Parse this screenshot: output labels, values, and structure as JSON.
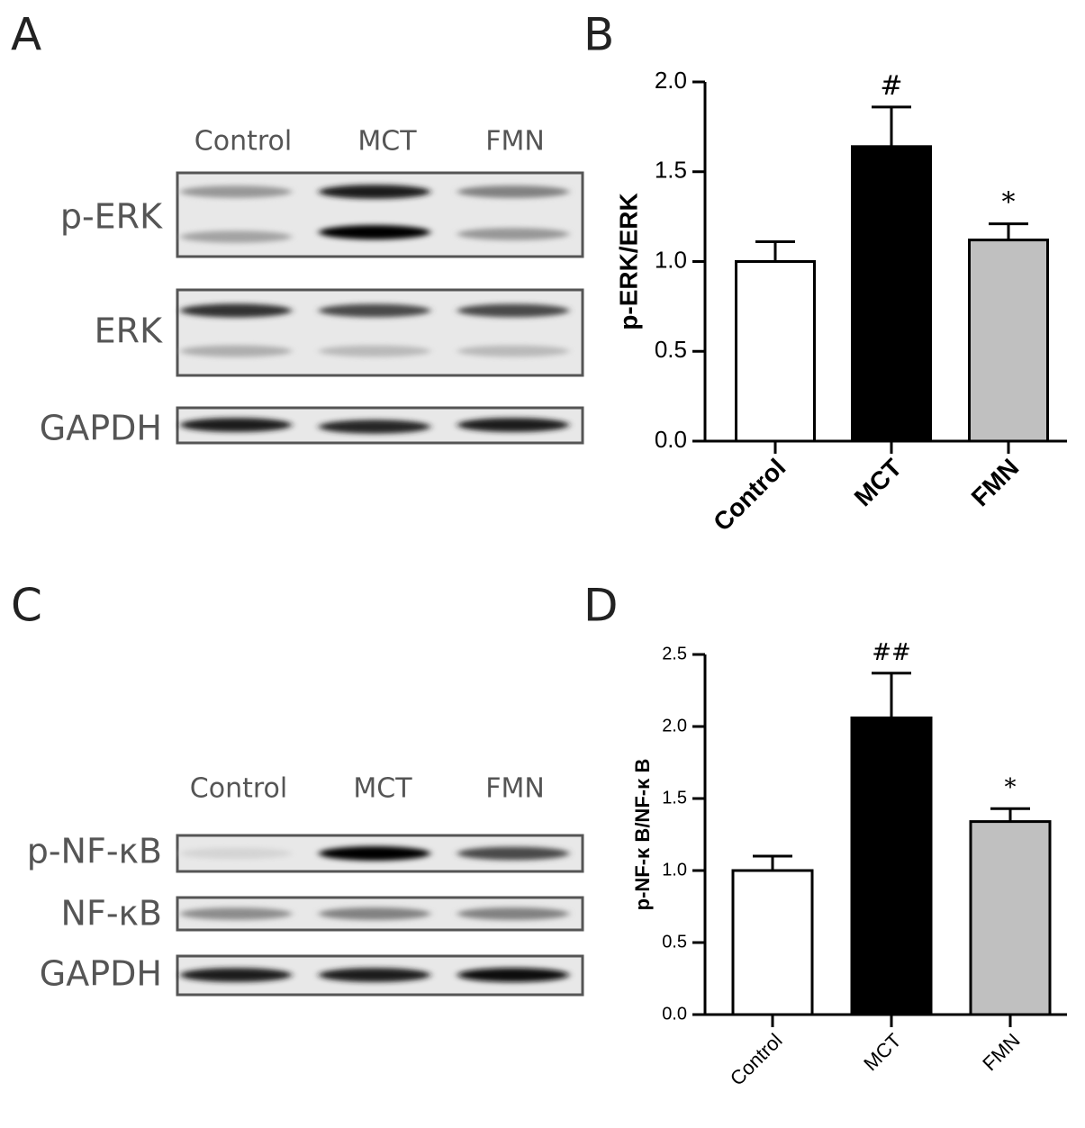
{
  "panel_labels": [
    "A",
    "B",
    "C",
    "D"
  ],
  "blots": [
    {
      "lanes": [
        "Control",
        "MCT",
        "FMN"
      ],
      "rows": [
        "p-ERK",
        "ERK",
        "GAPDH"
      ]
    },
    {
      "lanes": [
        "Control",
        "MCT",
        "FMN"
      ],
      "rows": [
        "p-NF-κB",
        "NF-κB",
        "GAPDH"
      ]
    }
  ],
  "chart_data": [
    {
      "type": "bar",
      "y_label": "p-ERK/ERK",
      "categories": [
        "Control",
        "MCT",
        "FMN"
      ],
      "values": [
        1.0,
        1.64,
        1.12
      ],
      "errors": [
        0.11,
        0.22,
        0.09
      ],
      "annotations": [
        null,
        "#",
        "*"
      ],
      "colors": [
        "#ffffff",
        "#000000",
        "#c0c0c0"
      ],
      "ylim": [
        0,
        2
      ],
      "yticks": [
        {
          "value": 0,
          "label": "0.0"
        },
        {
          "value": 0.5,
          "label": "0.5"
        },
        {
          "value": 1,
          "label": "1.0"
        },
        {
          "value": 1.5,
          "label": "1.5"
        },
        {
          "value": 2,
          "label": "2.0"
        }
      ]
    },
    {
      "type": "bar",
      "y_label": "p-NF-κ B/NF-κ B",
      "categories": [
        "Control",
        "MCT",
        "FMN"
      ],
      "values": [
        1.0,
        2.06,
        1.34
      ],
      "errors": [
        0.1,
        0.31,
        0.09
      ],
      "annotations": [
        null,
        "##",
        "*"
      ],
      "colors": [
        "#ffffff",
        "#000000",
        "#c0c0c0"
      ],
      "ylim": [
        0,
        2.5
      ],
      "yticks": [
        {
          "value": 0,
          "label": "0.0"
        },
        {
          "value": 0.5,
          "label": "0.5"
        },
        {
          "value": 1,
          "label": "1.0"
        },
        {
          "value": 1.5,
          "label": "1.5"
        },
        {
          "value": 2,
          "label": "2.0"
        },
        {
          "value": 2.5,
          "label": "2.5"
        }
      ]
    }
  ]
}
